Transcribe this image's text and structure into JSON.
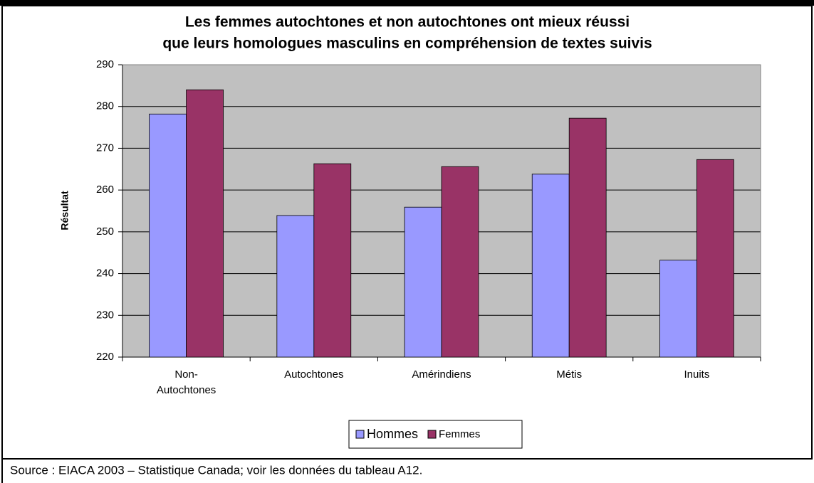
{
  "chart_data": {
    "type": "bar",
    "title": [
      "Les femmes autochtones et non autochtones ont mieux réussi",
      "que leurs homologues masculins en compréhension de textes suivis"
    ],
    "y_label": "Résultat",
    "categories": [
      "Non-Autochtones",
      "Autochtones",
      "Amérindiens",
      "Métis",
      "Inuits"
    ],
    "series": [
      {
        "name": "Hommes",
        "color": "#9999ff",
        "values": [
          278.2,
          253.9,
          255.9,
          263.8,
          243.2
        ]
      },
      {
        "name": "Femmes",
        "color": "#993366",
        "values": [
          284.0,
          266.3,
          265.6,
          277.2,
          267.3
        ]
      }
    ],
    "ylim": [
      220,
      290
    ],
    "yticks": [
      220,
      230,
      240,
      250,
      260,
      270,
      280,
      290
    ],
    "grid": true,
    "legend": "bottom",
    "source": "Source : EIACA 2003 – Statistique Canada; voir les données du tableau A12."
  }
}
